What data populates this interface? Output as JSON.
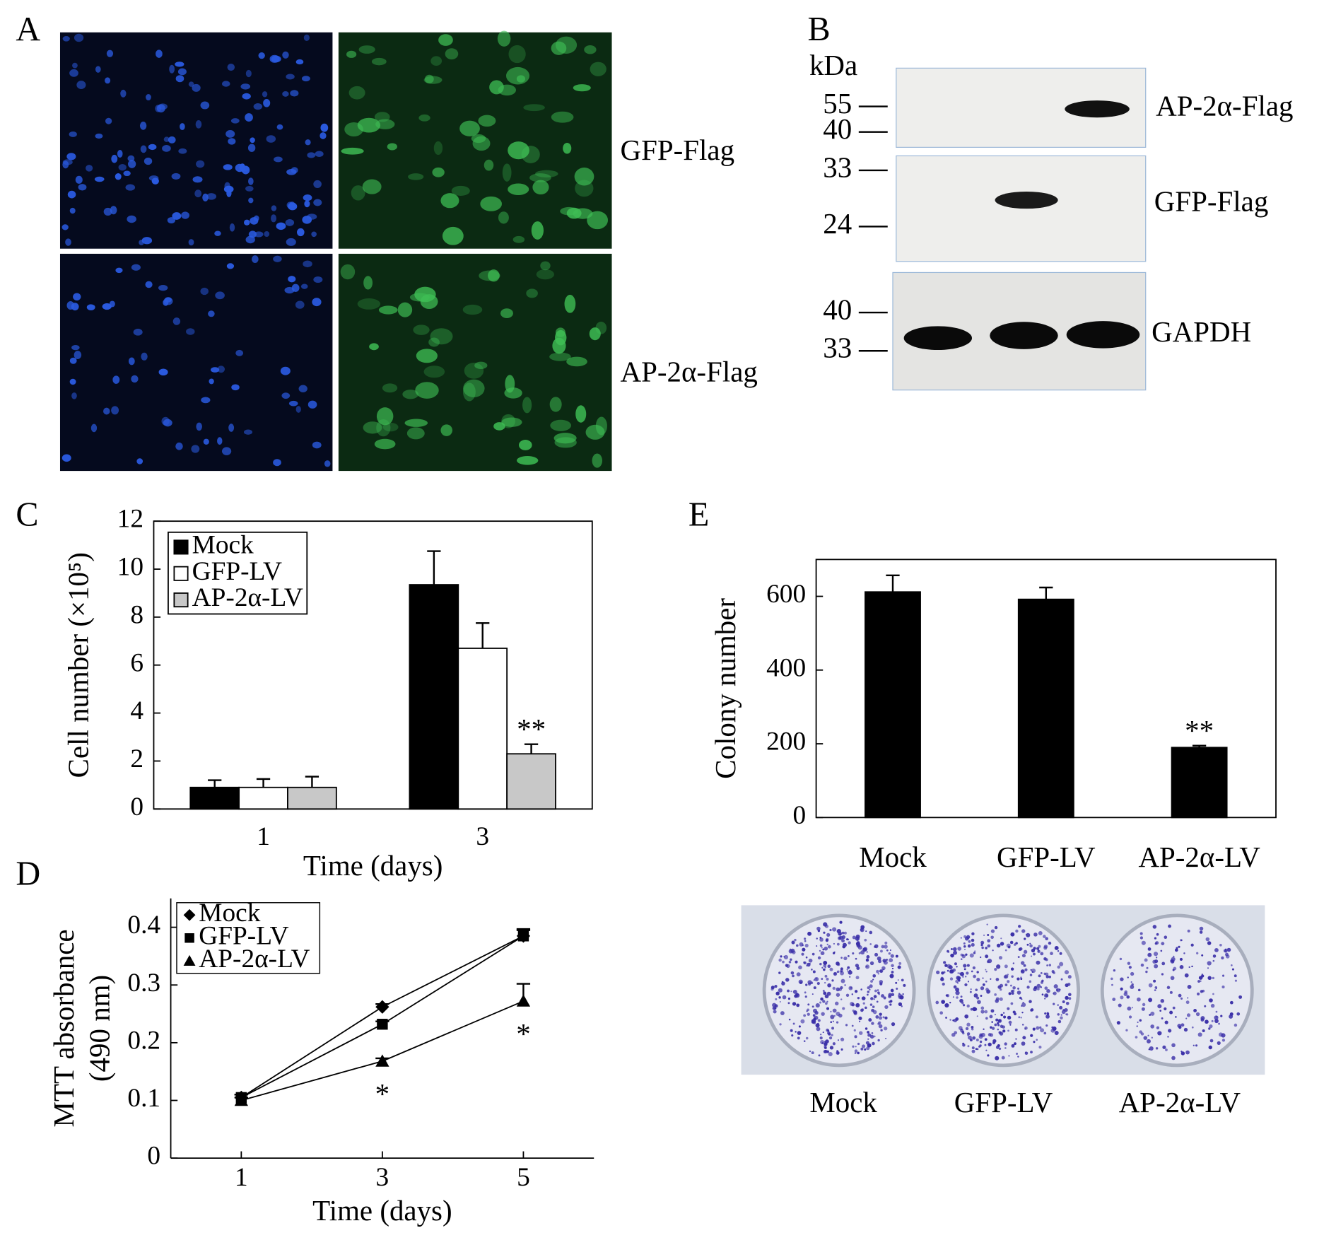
{
  "panel_labels": [
    "A",
    "B",
    "C",
    "D",
    "E"
  ],
  "panel_a": {
    "row_labels": [
      "GFP-Flag",
      "AP-2α-Flag"
    ]
  },
  "panel_b": {
    "unit": "kDa",
    "blots": [
      {
        "label": "AP-2α-Flag",
        "markers": [
          55,
          40
        ]
      },
      {
        "label": "GFP-Flag",
        "markers": [
          33,
          24
        ]
      },
      {
        "label": "GAPDH",
        "markers": [
          40,
          33
        ]
      }
    ]
  },
  "panel_e_plate": {
    "labels": [
      "Mock",
      "GFP-LV",
      "AP-2α-LV"
    ]
  },
  "chart_data": [
    {
      "type": "bar",
      "xlabel": "Time (days)",
      "ylabel": "Cell number (×10⁵)",
      "categories": [
        "1",
        "3"
      ],
      "ylim": [
        0,
        12
      ],
      "yticks": [
        0,
        2,
        4,
        6,
        8,
        10,
        12
      ],
      "legend": "upper left",
      "series": [
        {
          "name": "Mock",
          "color": "#000000",
          "values": [
            0.9,
            9.35
          ],
          "errors": [
            0.3,
            1.4
          ],
          "annotations": [
            null,
            null
          ]
        },
        {
          "name": "GFP-LV",
          "color": "#ffffff",
          "values": [
            0.9,
            6.7
          ],
          "errors": [
            0.35,
            1.05
          ],
          "annotations": [
            null,
            null
          ]
        },
        {
          "name": "AP-2α-LV",
          "color": "#c8c8c8",
          "values": [
            0.9,
            2.3
          ],
          "errors": [
            0.45,
            0.4
          ],
          "annotations": [
            null,
            "**"
          ]
        }
      ]
    },
    {
      "type": "line",
      "xlabel": "Time (days)",
      "ylabel": [
        "MTT absorbance",
        "(490 nm)"
      ],
      "x": [
        1,
        3,
        5
      ],
      "xlim": [
        0,
        6
      ],
      "xticks": [
        1,
        3,
        5
      ],
      "ylim": [
        0,
        0.45
      ],
      "yticks": [
        0,
        0.1,
        0.2,
        0.3,
        0.4
      ],
      "legend": "upper left",
      "series": [
        {
          "name": "Mock",
          "color": "#000000",
          "marker": "diamond",
          "values": [
            0.105,
            0.262,
            0.385
          ],
          "errors": [
            0.005,
            0.005,
            0.012
          ],
          "annotations": [
            null,
            null,
            null
          ]
        },
        {
          "name": "GFP-LV",
          "color": "#000000",
          "marker": "square",
          "values": [
            0.105,
            0.232,
            0.385
          ],
          "errors": [
            0.005,
            0.005,
            0.01
          ],
          "annotations": [
            null,
            null,
            null
          ]
        },
        {
          "name": "AP-2α-LV",
          "color": "#000000",
          "marker": "triangle",
          "values": [
            0.1,
            0.168,
            0.272
          ],
          "errors": [
            0.005,
            0.005,
            0.03
          ],
          "annotations": [
            null,
            "*",
            "*"
          ]
        }
      ]
    },
    {
      "type": "bar",
      "ylabel": "Colony number",
      "categories": [
        "Mock",
        "GFP-LV",
        "AP-2α-LV"
      ],
      "values": [
        612,
        592,
        190
      ],
      "errors": [
        45,
        32,
        5
      ],
      "annotations": [
        null,
        null,
        "**"
      ],
      "color": "#000000",
      "ylim": [
        0,
        700
      ],
      "yticks": [
        0,
        200,
        400,
        600
      ]
    }
  ]
}
